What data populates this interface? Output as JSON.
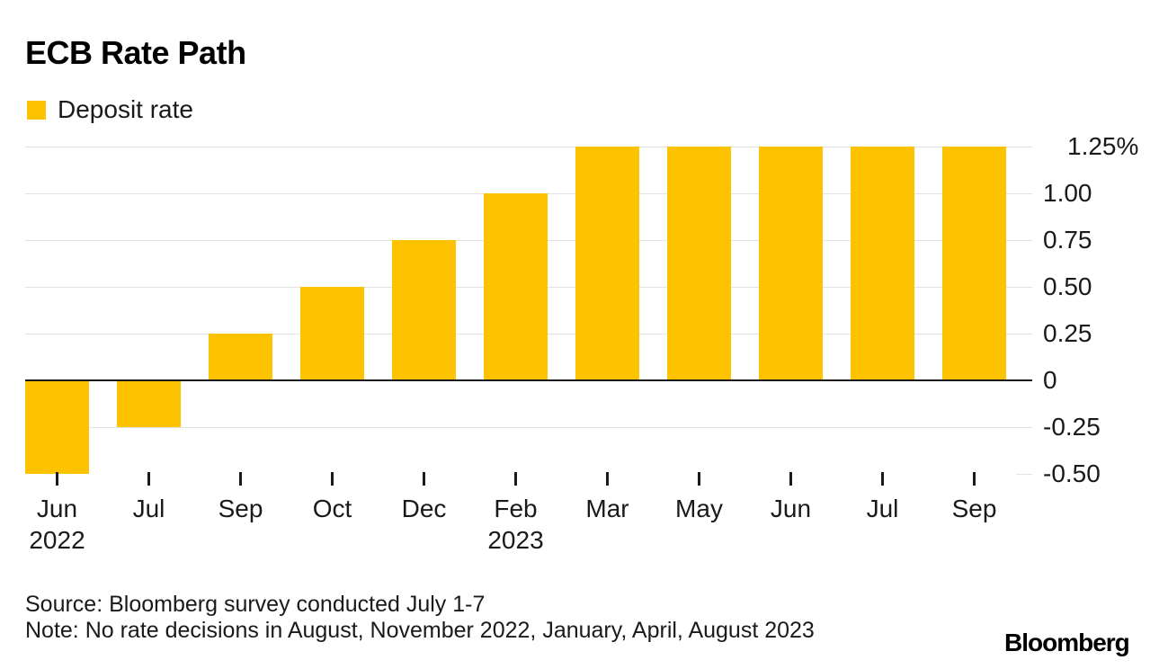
{
  "header": {
    "title": "ECB Rate Path"
  },
  "legend": {
    "label": "Deposit rate"
  },
  "chart_data": {
    "type": "bar",
    "title": "ECB Rate Path",
    "series": [
      {
        "name": "Deposit rate",
        "values": [
          -0.5,
          -0.25,
          0.25,
          0.5,
          0.75,
          1.0,
          1.25,
          1.25,
          1.25,
          1.25,
          1.25
        ]
      }
    ],
    "categories": [
      {
        "month": "Jun",
        "year": "2022"
      },
      {
        "month": "Jul"
      },
      {
        "month": "Sep"
      },
      {
        "month": "Oct"
      },
      {
        "month": "Dec"
      },
      {
        "month": "Feb",
        "year": "2023"
      },
      {
        "month": "Mar"
      },
      {
        "month": "May"
      },
      {
        "month": "Jun"
      },
      {
        "month": "Jul"
      },
      {
        "month": "Sep"
      }
    ],
    "unit": "%",
    "ylim": [
      -0.5,
      1.25
    ],
    "y_ticks": [
      {
        "value": 1.25,
        "label": "1.25%"
      },
      {
        "value": 1.0,
        "label": "1.00"
      },
      {
        "value": 0.75,
        "label": "0.75"
      },
      {
        "value": 0.5,
        "label": "0.50"
      },
      {
        "value": 0.25,
        "label": "0.25"
      },
      {
        "value": 0,
        "label": "0"
      },
      {
        "value": -0.25,
        "label": "-0.25"
      },
      {
        "value": -0.5,
        "label": "-0.50"
      }
    ],
    "bar_color": "#FDC300",
    "gridline_color": "#e3e3e3",
    "zero_line_color": "#1a1a1a",
    "grid": true,
    "legend_position": "top-left",
    "axis_side": "right"
  },
  "footer": {
    "source": "Source: Bloomberg survey conducted July 1-7",
    "note": "Note: No rate decisions in August, November 2022, January, April, August 2023",
    "brand": "Bloomberg"
  }
}
